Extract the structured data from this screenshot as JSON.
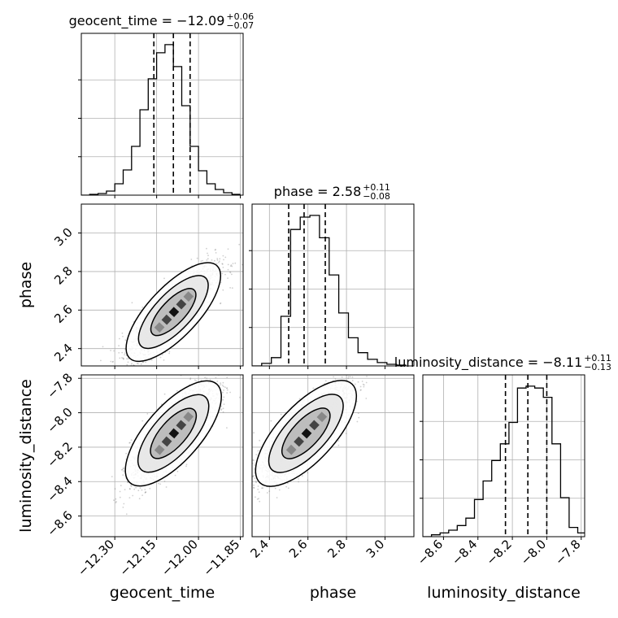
{
  "chart_data": {
    "type": "corner",
    "parameters": [
      "geocent_time",
      "phase",
      "luminosity_distance"
    ],
    "titles": [
      {
        "param": "geocent_time",
        "main": "geocent_time = −12.09",
        "plus": "+0.06",
        "minus": "−0.07",
        "median": -12.09,
        "err_plus": 0.06,
        "err_minus": 0.07
      },
      {
        "param": "phase",
        "main": "phase = 2.58",
        "plus": "+0.11",
        "minus": "−0.08",
        "median": 2.58,
        "err_plus": 0.11,
        "err_minus": 0.08
      },
      {
        "param": "luminosity_distance",
        "main": "luminosity_distance = −8.11",
        "plus": "+0.11",
        "minus": "−0.13",
        "median": -8.11,
        "err_plus": 0.11,
        "err_minus": 0.13
      }
    ],
    "ranges": {
      "geocent_time": [
        -12.42,
        -11.84
      ],
      "phase": [
        2.31,
        3.15
      ],
      "luminosity_distance": [
        -8.72,
        -7.78
      ]
    },
    "ticks": {
      "geocent_time": {
        "values": [
          -12.3,
          -12.15,
          -12.0,
          -11.85
        ],
        "labels": [
          "−12.30",
          "−12.15",
          "−12.00",
          "−11.85"
        ]
      },
      "phase": {
        "values": [
          2.4,
          2.6,
          2.8,
          3.0
        ],
        "labels": [
          "2.4",
          "2.6",
          "2.8",
          "3.0"
        ]
      },
      "luminosity_distance": {
        "values": [
          -8.6,
          -8.4,
          -8.2,
          -8.0,
          -7.8
        ],
        "labels": [
          "−8.6",
          "−8.4",
          "−8.2",
          "−8.0",
          "−7.8"
        ]
      }
    },
    "quantile_lines": {
      "geocent_time": [
        -12.16,
        -12.09,
        -12.03
      ],
      "phase": [
        2.5,
        2.58,
        2.69
      ],
      "luminosity_distance": [
        -8.24,
        -8.11,
        -8.0
      ]
    },
    "histograms": {
      "geocent_time": {
        "bins": [
          -12.42,
          -12.39,
          -12.36,
          -12.33,
          -12.3,
          -12.27,
          -12.24,
          -12.21,
          -12.18,
          -12.15,
          -12.12,
          -12.09,
          -12.06,
          -12.03,
          -12.0,
          -11.97,
          -11.94,
          -11.91,
          -11.88,
          -11.85
        ],
        "counts": [
          0,
          1,
          2,
          5,
          14,
          31,
          60,
          105,
          143,
          175,
          185,
          158,
          110,
          60,
          30,
          14,
          7,
          3,
          1
        ]
      },
      "phase": {
        "bins": [
          2.31,
          2.36,
          2.41,
          2.46,
          2.51,
          2.56,
          2.61,
          2.66,
          2.71,
          2.76,
          2.81,
          2.86,
          2.91,
          2.96,
          3.01,
          3.06,
          3.11
        ],
        "counts": [
          0,
          3,
          10,
          60,
          165,
          180,
          182,
          155,
          110,
          64,
          34,
          16,
          8,
          4,
          2,
          1
        ]
      },
      "luminosity_distance": {
        "bins": [
          -8.72,
          -8.67,
          -8.62,
          -8.57,
          -8.52,
          -8.47,
          -8.42,
          -8.37,
          -8.32,
          -8.27,
          -8.22,
          -8.17,
          -8.12,
          -8.07,
          -8.02,
          -7.97,
          -7.92,
          -7.87,
          -7.82,
          -7.77
        ],
        "counts": [
          0,
          2,
          4,
          7,
          12,
          20,
          40,
          60,
          82,
          100,
          123,
          160,
          162,
          160,
          150,
          100,
          42,
          10,
          4
        ]
      }
    },
    "grid": true,
    "show_datapoints": true,
    "contour_levels": 3,
    "line_color": "#000000",
    "fill_color": "#d0d0d0",
    "point_color": "#777777"
  }
}
